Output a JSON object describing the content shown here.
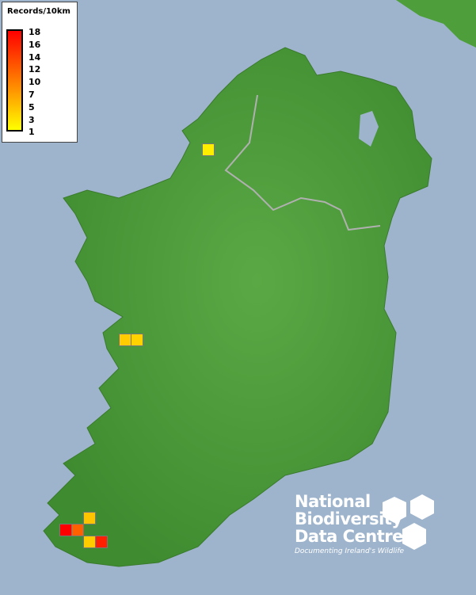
{
  "legend": {
    "title": "Records/10km",
    "ticks": [
      "18",
      "16",
      "14",
      "12",
      "10",
      "7",
      "5",
      "3",
      "1"
    ],
    "color_low": "#ffff00",
    "color_high": "#ff0000"
  },
  "records": [
    {
      "region": "Donegal",
      "color": "#ffee00"
    },
    {
      "region": "Galway",
      "color": "#ffcc00"
    },
    {
      "region": "Galway",
      "color": "#ffd200"
    },
    {
      "region": "Kerry",
      "color": "#ffc400"
    },
    {
      "region": "Kerry",
      "color": "#ff0000"
    },
    {
      "region": "Kerry",
      "color": "#ff6000"
    },
    {
      "region": "Kerry",
      "color": "#ffcc00"
    },
    {
      "region": "Kerry",
      "color": "#ff2000"
    }
  ],
  "logo": {
    "line1": "National",
    "line2": "Biodiversity",
    "line3": "Data Centre",
    "tagline": "Documenting Ireland's Wildlife"
  },
  "colors": {
    "sea": "#9eb4cc",
    "land": "#4f9e3c"
  }
}
